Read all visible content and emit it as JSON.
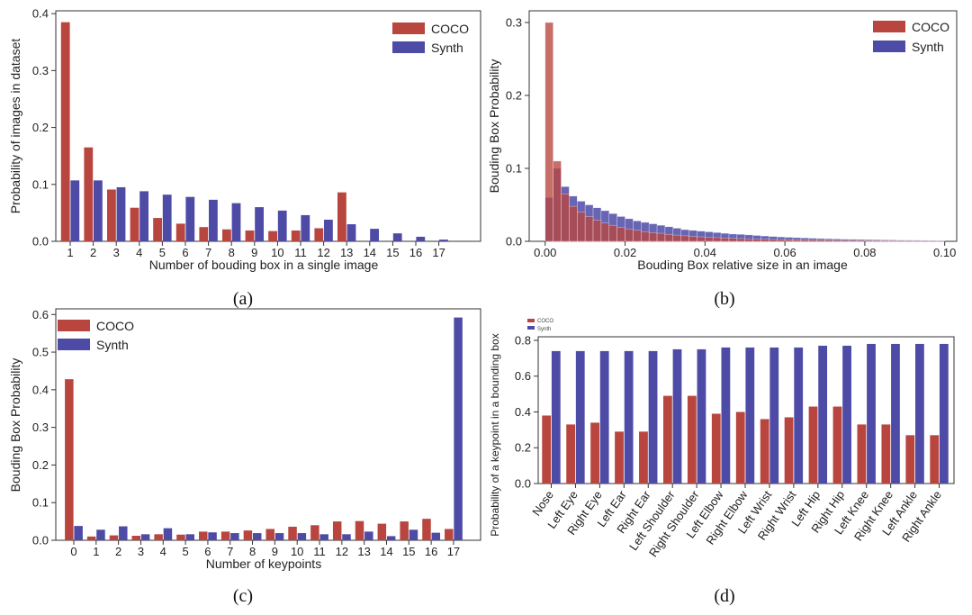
{
  "colors": {
    "coco": "#b9453f",
    "synth": "#4e4ba7"
  },
  "captions": [
    "(a)",
    "(b)",
    "(c)",
    "(d)"
  ],
  "chart_data": [
    {
      "id": "a",
      "type": "bar",
      "categories": [
        "1",
        "2",
        "3",
        "4",
        "5",
        "6",
        "7",
        "8",
        "9",
        "10",
        "11",
        "12",
        "13",
        "14",
        "15",
        "16",
        "17"
      ],
      "series": [
        {
          "name": "COCO",
          "values": [
            0.385,
            0.165,
            0.091,
            0.059,
            0.041,
            0.031,
            0.025,
            0.021,
            0.019,
            0.018,
            0.019,
            0.023,
            0.086,
            0,
            0,
            0,
            0
          ]
        },
        {
          "name": "Synth",
          "values": [
            0.107,
            0.107,
            0.095,
            0.088,
            0.082,
            0.078,
            0.073,
            0.067,
            0.06,
            0.054,
            0.046,
            0.038,
            0.03,
            0.022,
            0.014,
            0.008,
            0.003
          ]
        }
      ],
      "xlabel": "Number of bouding box in a single image",
      "ylabel": "Probability of images in dataset",
      "ylim": [
        0,
        0.405
      ],
      "yticks": [
        0.0,
        0.1,
        0.2,
        0.3,
        0.4
      ],
      "ytick_labels": [
        "0.0",
        "0.1",
        "0.2",
        "0.3",
        "0.4"
      ],
      "legend": [
        "COCO",
        "Synth"
      ],
      "legend_position": "top-right"
    },
    {
      "id": "b",
      "type": "bar",
      "subtype": "histogram",
      "bin_centers": [
        0.001,
        0.003,
        0.005,
        0.007,
        0.009,
        0.011,
        0.013,
        0.015,
        0.017,
        0.019,
        0.021,
        0.023,
        0.025,
        0.027,
        0.029,
        0.031,
        0.033,
        0.035,
        0.037,
        0.039,
        0.041,
        0.043,
        0.045,
        0.047,
        0.049,
        0.051,
        0.053,
        0.055,
        0.057,
        0.059,
        0.061,
        0.063,
        0.065,
        0.067,
        0.069,
        0.071,
        0.073,
        0.075,
        0.077,
        0.079,
        0.081,
        0.083,
        0.085,
        0.087,
        0.089,
        0.091,
        0.093,
        0.095,
        0.097,
        0.099
      ],
      "bin_width": 0.002,
      "series": [
        {
          "name": "COCO",
          "values": [
            0.3,
            0.11,
            0.065,
            0.048,
            0.04,
            0.034,
            0.029,
            0.025,
            0.022,
            0.019,
            0.017,
            0.015,
            0.013,
            0.012,
            0.011,
            0.0095,
            0.0085,
            0.0075,
            0.0068,
            0.0061,
            0.0055,
            0.005,
            0.0045,
            0.0041,
            0.0037,
            0.0034,
            0.0031,
            0.0028,
            0.0026,
            0.0024,
            0.0022,
            0.002,
            0.0019,
            0.0017,
            0.0016,
            0.0015,
            0.0014,
            0.0013,
            0.0012,
            0.0011,
            0.001,
            0.001,
            0.0009,
            0.0008,
            0.0008,
            0.0007,
            0.0007,
            0.0006,
            0.0006,
            0.0005
          ]
        },
        {
          "name": "Synth",
          "values": [
            0.06,
            0.1,
            0.075,
            0.062,
            0.055,
            0.05,
            0.046,
            0.042,
            0.038,
            0.034,
            0.031,
            0.028,
            0.026,
            0.024,
            0.022,
            0.02,
            0.018,
            0.016,
            0.015,
            0.014,
            0.013,
            0.012,
            0.011,
            0.01,
            0.0095,
            0.0088,
            0.008,
            0.0073,
            0.0066,
            0.006,
            0.0055,
            0.005,
            0.0046,
            0.0042,
            0.0038,
            0.0035,
            0.0032,
            0.0029,
            0.0027,
            0.0025,
            0.0023,
            0.0021,
            0.0019,
            0.0018,
            0.0016,
            0.0015,
            0.0014,
            0.0013,
            0.0012,
            0.0011
          ]
        }
      ],
      "xlabel": "Bouding Box relative size in an image",
      "ylabel": "Bouding Box Probability",
      "xlim": [
        -0.004,
        0.103
      ],
      "xticks": [
        0.0,
        0.02,
        0.04,
        0.06,
        0.08,
        0.1
      ],
      "xtick_labels": [
        "0.00",
        "0.02",
        "0.04",
        "0.06",
        "0.08",
        "0.10"
      ],
      "ylim": [
        0,
        0.316
      ],
      "yticks": [
        0.0,
        0.1,
        0.2,
        0.3
      ],
      "ytick_labels": [
        "0.0",
        "0.1",
        "0.2",
        "0.3"
      ],
      "legend": [
        "COCO",
        "Synth"
      ],
      "legend_position": "top-right"
    },
    {
      "id": "c",
      "type": "bar",
      "categories": [
        "0",
        "1",
        "2",
        "3",
        "4",
        "5",
        "6",
        "7",
        "8",
        "9",
        "10",
        "11",
        "12",
        "13",
        "14",
        "15",
        "16",
        "17"
      ],
      "series": [
        {
          "name": "COCO",
          "values": [
            0.428,
            0.01,
            0.013,
            0.012,
            0.016,
            0.015,
            0.023,
            0.023,
            0.026,
            0.03,
            0.036,
            0.04,
            0.05,
            0.051,
            0.044,
            0.05,
            0.057,
            0.03
          ]
        },
        {
          "name": "Synth",
          "values": [
            0.038,
            0.028,
            0.037,
            0.016,
            0.032,
            0.016,
            0.021,
            0.019,
            0.019,
            0.019,
            0.019,
            0.016,
            0.016,
            0.023,
            0.011,
            0.028,
            0.02,
            0.592
          ]
        }
      ],
      "xlabel": "Number of keypoints",
      "ylabel": "Bouding Box Probability",
      "ylim": [
        0,
        0.615
      ],
      "yticks": [
        0.0,
        0.1,
        0.2,
        0.3,
        0.4,
        0.5,
        0.6
      ],
      "ytick_labels": [
        "0.0",
        "0.1",
        "0.2",
        "0.3",
        "0.4",
        "0.5",
        "0.6"
      ],
      "legend": [
        "COCO",
        "Synth"
      ],
      "legend_position": "top-left"
    },
    {
      "id": "d",
      "type": "bar",
      "categories": [
        "Nose",
        "Left Eye",
        "Right Eye",
        "Left Ear",
        "Right Ear",
        "Left Shoulder",
        "Right Shoulder",
        "Left Elbow",
        "Right Elbow",
        "Left Wrist",
        "Right Wrist",
        "Left Hip",
        "Right Hip",
        "Left Knee",
        "Right Knee",
        "Left Ankle",
        "Right Ankle"
      ],
      "series": [
        {
          "name": "COCO",
          "values": [
            0.38,
            0.33,
            0.34,
            0.29,
            0.29,
            0.49,
            0.49,
            0.39,
            0.4,
            0.36,
            0.37,
            0.43,
            0.43,
            0.33,
            0.33,
            0.27,
            0.27
          ]
        },
        {
          "name": "Synth",
          "values": [
            0.74,
            0.74,
            0.74,
            0.74,
            0.74,
            0.75,
            0.75,
            0.76,
            0.76,
            0.76,
            0.76,
            0.77,
            0.77,
            0.78,
            0.78,
            0.78,
            0.78
          ]
        }
      ],
      "xlabel": "",
      "ylabel": "Probability of a keypoint in a bounding box",
      "ylim": [
        0,
        0.82
      ],
      "yticks": [
        0.0,
        0.2,
        0.4,
        0.6,
        0.8
      ],
      "ytick_labels": [
        "0.0",
        "0.2",
        "0.4",
        "0.6",
        "0.8"
      ],
      "legend": [
        "COCO",
        "Synth"
      ],
      "legend_position": "top-left"
    }
  ]
}
